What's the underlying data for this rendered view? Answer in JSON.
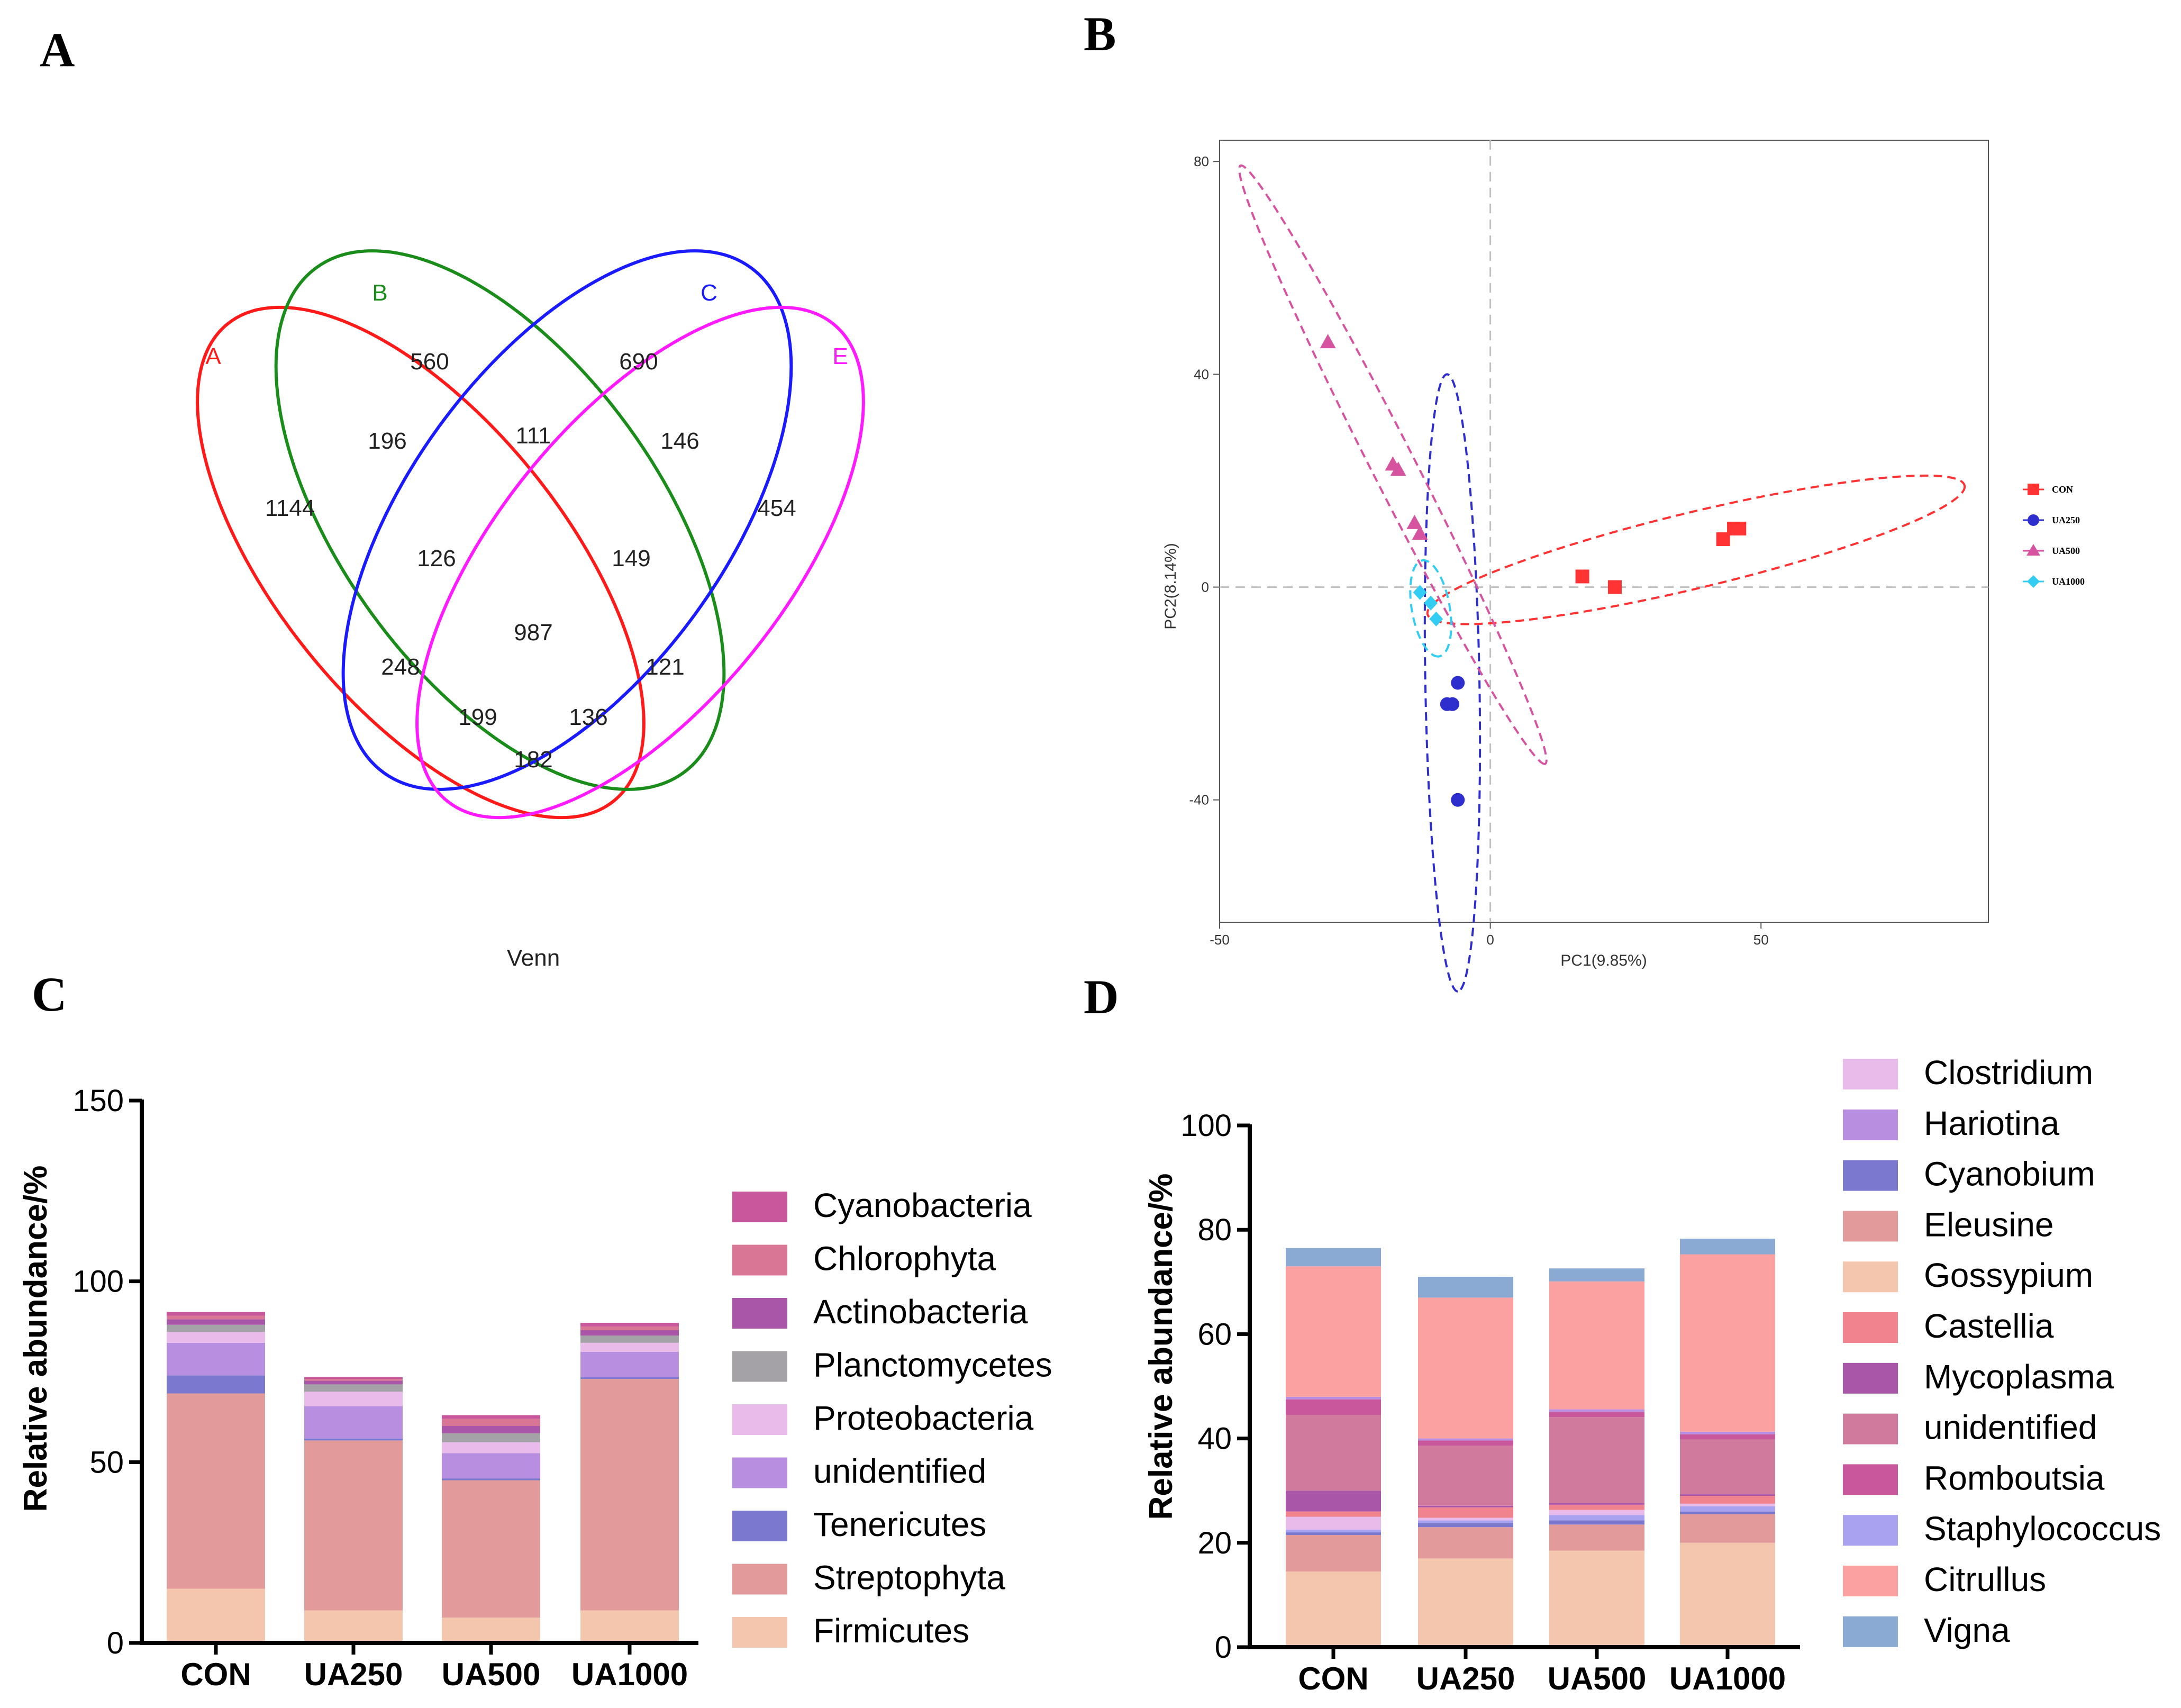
{
  "panels": {
    "A": "A",
    "B": "B",
    "C": "C",
    "D": "D"
  },
  "colors": {
    "venn_A": "#ff1a1a",
    "venn_B": "#1a8c1a",
    "venn_C": "#1a1aff",
    "venn_E": "#ff1aff",
    "pca_con": "#ff3333",
    "pca_ua250": "#2e2ecf",
    "pca_ua500": "#d6549f",
    "pca_ua1000": "#33ccf2",
    "axis": "#000000",
    "guide": "#c0c0c0"
  },
  "chart_data": [
    {
      "panel": "A",
      "type": "venn",
      "title": "Venn",
      "sets": [
        "A",
        "B",
        "C",
        "E"
      ],
      "regions": {
        "A_only": "1144",
        "B_only": "560",
        "C_only": "690",
        "E_only": "454",
        "AB": "196",
        "BC": "111",
        "CE": "146",
        "ABC": "126",
        "BCE": "149",
        "ABCE": "987",
        "AC": "248",
        "BE": "121",
        "ACE": "199",
        "ABE": "136",
        "AE": "182"
      }
    },
    {
      "panel": "B",
      "type": "scatter",
      "xlabel": "PC1(9.85%)",
      "ylabel": "PC2(8.14%)",
      "xlim": [
        -50,
        92
      ],
      "ylim": [
        -63,
        84
      ],
      "xticks": [
        -50,
        0,
        50
      ],
      "xtick_labels": [
        "-50",
        "0",
        "50"
      ],
      "yticks": [
        -40,
        0,
        40,
        80
      ],
      "ytick_labels": [
        "-40",
        "0",
        "40",
        "80"
      ],
      "legend_position": "right",
      "series": [
        {
          "name": "CON",
          "marker": "square",
          "color": "#ff3333",
          "points": [
            [
              17,
              2
            ],
            [
              23,
              0
            ],
            [
              43,
              9
            ],
            [
              45,
              11
            ],
            [
              46,
              11
            ]
          ],
          "ellipse": {
            "cx": 38,
            "cy": 7,
            "rx": 51,
            "ry": 7,
            "angle": 13.5
          }
        },
        {
          "name": "UA250",
          "marker": "circle",
          "color": "#2e2ecf",
          "points": [
            [
              -6,
              -18
            ],
            [
              -8,
              -22
            ],
            [
              -7,
              -22
            ],
            [
              -6,
              -40
            ]
          ],
          "ellipse": {
            "cx": -7,
            "cy": -18,
            "rx": 57,
            "ry": 5,
            "angle": -89
          }
        },
        {
          "name": "UA500",
          "marker": "triangle",
          "color": "#d6549f",
          "points": [
            [
              -30,
              46
            ],
            [
              -18,
              23
            ],
            [
              -17,
              22
            ],
            [
              -14,
              12
            ],
            [
              -13,
              10
            ]
          ],
          "ellipse": {
            "cx": -18,
            "cy": 23,
            "rx": 62,
            "ry": 4,
            "angle": -63
          }
        },
        {
          "name": "UA1000",
          "marker": "diamond",
          "color": "#33ccf2",
          "points": [
            [
              -13,
              -1
            ],
            [
              -11,
              -3
            ],
            [
              -10,
              -6
            ]
          ],
          "ellipse": {
            "cx": -11,
            "cy": -4,
            "rx": 9,
            "ry": 3.5,
            "angle": -80
          }
        }
      ]
    },
    {
      "panel": "C",
      "type": "bar",
      "stacked": true,
      "ylabel": "Relative abundance/%",
      "ylim": [
        0,
        150
      ],
      "yticks": [
        0,
        50,
        100,
        150
      ],
      "ytick_labels": [
        "0",
        "50",
        "100",
        "150"
      ],
      "categories": [
        "CON",
        "UA250",
        "UA500",
        "UA1000"
      ],
      "series": [
        {
          "name": "Firmicutes",
          "color": "#f4c6ad",
          "values": [
            15,
            9,
            7,
            9
          ]
        },
        {
          "name": "Streptophyta",
          "color": "#e39a9a",
          "values": [
            54,
            47,
            38,
            64
          ]
        },
        {
          "name": "Tenericutes",
          "color": "#7a78cf",
          "values": [
            5,
            0.5,
            0.5,
            0.5
          ]
        },
        {
          "name": "unidentified",
          "color": "#b88fe0",
          "values": [
            9,
            9,
            7,
            7
          ]
        },
        {
          "name": "Proteobacteria",
          "color": "#e8bbea",
          "values": [
            3,
            4,
            3,
            2.5
          ]
        },
        {
          "name": "Planctomycetes",
          "color": "#a4a2a6",
          "values": [
            2,
            2,
            2.5,
            2
          ]
        },
        {
          "name": "Actinobacteria",
          "color": "#a955a8",
          "values": [
            1.5,
            1,
            2,
            1.5
          ]
        },
        {
          "name": "Chlorophyta",
          "color": "#d97696",
          "values": [
            1,
            0.5,
            2,
            1
          ]
        },
        {
          "name": "Cyanobacteria",
          "color": "#c8579b",
          "values": [
            1,
            0.5,
            1,
            1
          ]
        }
      ],
      "legend": [
        "Cyanobacteria",
        "Chlorophyta",
        "Actinobacteria",
        "Planctomycetes",
        "Proteobacteria",
        "unidentified",
        "Tenericutes",
        "Streptophyta",
        "Firmicutes"
      ]
    },
    {
      "panel": "D",
      "type": "bar",
      "stacked": true,
      "ylabel": "Relative abundance/%",
      "ylim": [
        0,
        100
      ],
      "yticks": [
        0,
        20,
        40,
        60,
        80,
        100
      ],
      "ytick_labels": [
        "0",
        "20",
        "40",
        "60",
        "80",
        "100"
      ],
      "categories": [
        "CON",
        "UA250",
        "UA500",
        "UA1000"
      ],
      "series": [
        {
          "name": "Gossypium",
          "color": "#f4c6ad",
          "values": [
            14.5,
            17,
            18.5,
            20
          ]
        },
        {
          "name": "Eleusine",
          "color": "#e39a9a",
          "values": [
            7,
            6,
            5,
            5.5
          ]
        },
        {
          "name": "Cyanobium",
          "color": "#7a78cf",
          "values": [
            0.5,
            0.8,
            0.8,
            0.5
          ]
        },
        {
          "name": "Staphylococcus",
          "color": "#a8a2f0",
          "values": [
            0.5,
            0.5,
            1,
            1
          ]
        },
        {
          "name": "Clostridium",
          "color": "#e8bbea",
          "values": [
            2.5,
            0.5,
            1,
            0.5
          ]
        },
        {
          "name": "Castellia",
          "color": "#f0838d",
          "values": [
            1,
            2,
            1,
            1.5
          ]
        },
        {
          "name": "Mycoplasma",
          "color": "#a955a8",
          "values": [
            4,
            0.3,
            0.3,
            0.3
          ]
        },
        {
          "name": "unidentified",
          "color": "#d07a9e",
          "values": [
            14.5,
            11.5,
            16.5,
            10.5
          ]
        },
        {
          "name": "Romboutsia",
          "color": "#c8579b",
          "values": [
            3,
            1,
            1,
            1
          ]
        },
        {
          "name": "Hariotina",
          "color": "#b88fe0",
          "values": [
            0.5,
            0.4,
            0.5,
            0.5
          ]
        },
        {
          "name": "Citrullus",
          "color": "#fca1a1",
          "values": [
            25,
            27,
            24.5,
            34
          ]
        },
        {
          "name": "Vigna",
          "color": "#8aa9d3",
          "values": [
            3.5,
            4,
            2.5,
            3
          ]
        }
      ],
      "legend": [
        "Clostridium",
        "Hariotina",
        "Cyanobium",
        "Eleusine",
        "Gossypium",
        "Castellia",
        "Mycoplasma",
        "unidentified",
        "Romboutsia",
        "Staphylococcus",
        "Citrullus",
        "Vigna"
      ]
    }
  ]
}
